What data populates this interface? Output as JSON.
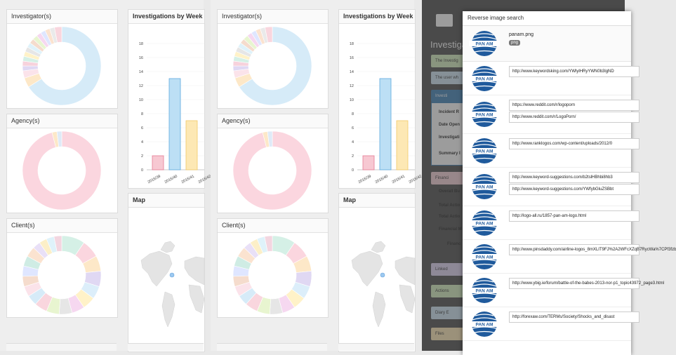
{
  "dashboard": {
    "investigator_title": "Investigator(s)",
    "agency_title": "Agency(s)",
    "client_title": "Client(s)",
    "weekly_title": "Investigations by Week",
    "map_title": "Map"
  },
  "chart_data": [
    {
      "type": "bar",
      "title": "Investigations by Week",
      "categories": [
        "2016/39",
        "2016/40",
        "2016/41",
        "2016/42"
      ],
      "values": [
        2,
        13,
        7,
        0
      ],
      "ylim": [
        0,
        18
      ],
      "yticks": [
        "0",
        "2",
        "4",
        "6",
        "8",
        "10",
        "12",
        "14",
        "16",
        "18"
      ],
      "colors": [
        "#f7c8d2",
        "#bcdff5",
        "#fde8b4",
        "#e8e8e8"
      ]
    },
    {
      "type": "pie",
      "title": "Investigator(s)",
      "values": [
        66,
        4,
        3,
        2,
        2,
        2,
        2,
        2,
        2,
        2,
        2,
        2,
        2,
        2,
        2,
        3
      ],
      "colors": [
        "#d6ebf8",
        "#fde8c8",
        "#fbe3ea",
        "#e0d8f3",
        "#f7d2dc",
        "#d5f0e6",
        "#fff2c8",
        "#e6e6e6",
        "#dff2fa",
        "#f5dccd",
        "#e8f5d0",
        "#f6d8f0",
        "#dfe6ff",
        "#fbe3d0",
        "#eaeaea",
        "#f9d6de"
      ]
    },
    {
      "type": "pie",
      "title": "Agency(s)",
      "values": [
        96,
        2,
        2
      ],
      "colors": [
        "#fbd6df",
        "#fde8c8",
        "#dfeaf7"
      ]
    },
    {
      "type": "pie",
      "title": "Client(s)",
      "values": [
        9,
        7,
        6,
        6,
        5,
        5,
        5,
        5,
        5,
        5,
        4,
        4,
        4,
        4,
        4,
        4,
        3,
        3,
        3,
        3
      ],
      "colors": [
        "#d5f0e6",
        "#fbd6df",
        "#fde8c8",
        "#e0d8f3",
        "#dceefa",
        "#fff2c8",
        "#f6d8f0",
        "#e6e6e6",
        "#e8f5d0",
        "#f9d6de",
        "#d6ebf8",
        "#fbe3ea",
        "#f5dccd",
        "#dfe6ff",
        "#cfece4",
        "#fbe3d0",
        "#e9e0f7",
        "#fcefc8",
        "#dff2fa",
        "#f3d6e0"
      ]
    }
  ],
  "overlay": {
    "modal_title": "Reverse image search",
    "file_name": "panam.png",
    "file_badge": "png",
    "results": [
      {
        "urls": [
          "http://www.keywordsking.com/YWlylHRyYWN0b3lgND"
        ]
      },
      {
        "urls": [
          "https://www.reddit.com/r/logoporn",
          "http://www.reddit.com/r/LogoPorn/"
        ]
      },
      {
        "urls": [
          "http://www.ranklogos.com/wp-content/uploads/2012/0"
        ]
      },
      {
        "urls": [
          "http://www.keyword-suggestions.com/b2tslHBhbi8hb3",
          "http://www.keyword-suggestions.com/YWfybGluZSBbt"
        ]
      },
      {
        "urls": [
          "http://logo-all.ru/1857-pan-am-logo.html"
        ]
      },
      {
        "urls": [
          "http://www.pinsdaddy.com/airline-logos_8mXLIT9FJ%2A2WFcXZqB7RycWa%7CPf3fzb"
        ]
      },
      {
        "urls": [
          "http://www.ybig.ie/forum/battle-of-the-babes-2013-nor-p1_topic43972_page3.html"
        ]
      },
      {
        "urls": [
          "http://forexaw.com/TERMs/Society/Shocks_and_disast"
        ]
      }
    ],
    "bg": {
      "title": "Investiga",
      "msg1": "The Investig",
      "msg2": "The user wh",
      "sec_investig": "Investi",
      "lbl_incident": "Incident R",
      "lbl_date": "Date Open",
      "lbl_investig": "Investigati",
      "lbl_summary": "Summary I",
      "sec_financial": "Financi",
      "lbl_overall": "Overall Bu",
      "lbl_total1": "Total Actio",
      "lbl_total2": "Total Actio",
      "lbl_financial": "Financial M",
      "lbl_financ2": "Financ",
      "btn_linked": "Linked",
      "btn_actions": "Actions",
      "btn_diary": "Diary E",
      "btn_files": "Files"
    }
  }
}
